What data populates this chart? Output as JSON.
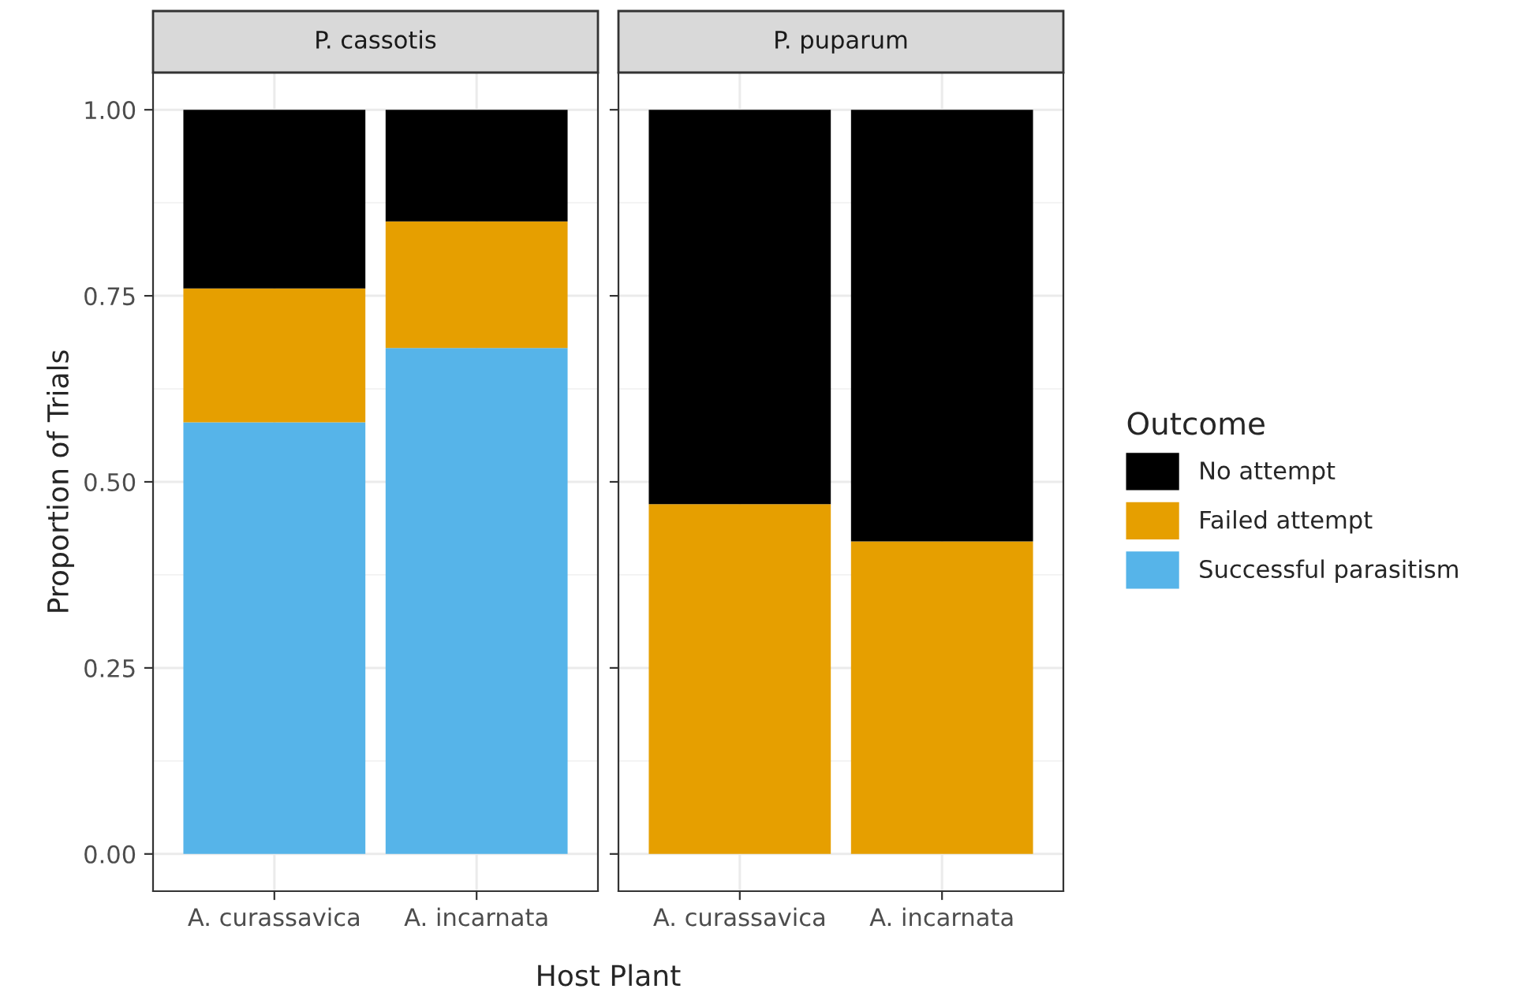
{
  "chart_data": [
    {
      "type": "bar",
      "title": "P. cassotis",
      "xlabel": "Host Plant",
      "ylabel": "Proportion of Trials",
      "legend_title": "Outcome",
      "legend": "right",
      "stacked": true,
      "grid": true,
      "categories": [
        "A. curassavica",
        "A. incarnata"
      ],
      "ylim": [
        -0.05,
        1.05
      ],
      "yticks": [
        {
          "value": 0,
          "label": "0.00"
        },
        {
          "value": 0.25,
          "label": "0.25"
        },
        {
          "value": 0.5,
          "label": "0.50"
        },
        {
          "value": 0.75,
          "label": "0.75"
        },
        {
          "value": 1,
          "label": "1.00"
        }
      ],
      "series": [
        {
          "name": "Successful parasitism",
          "color": "#56b4e9",
          "values": [
            0.58,
            0.68
          ]
        },
        {
          "name": "Failed attempt",
          "color": "#e69f00",
          "values": [
            0.18,
            0.17
          ]
        },
        {
          "name": "No attempt",
          "color": "#000000",
          "values": [
            0.24,
            0.15
          ]
        }
      ]
    },
    {
      "type": "bar",
      "title": "P. puparum",
      "legend": "right",
      "stacked": true,
      "grid": true,
      "tick_labels": "x",
      "categories": [
        "A. curassavica",
        "A. incarnata"
      ],
      "ylim": [
        -0.05,
        1.05
      ],
      "yticks": [
        {
          "value": 0,
          "label": null
        },
        {
          "value": 0.25,
          "label": null
        },
        {
          "value": 0.5,
          "label": null
        },
        {
          "value": 0.75,
          "label": null
        },
        {
          "value": 1,
          "label": null
        }
      ],
      "series": [
        {
          "name": "Failed attempt",
          "color": "#e69f00",
          "values": [
            0.47,
            0.42
          ]
        },
        {
          "name": "No attempt",
          "color": "#000000",
          "values": [
            0.53,
            0.58
          ]
        }
      ]
    }
  ]
}
